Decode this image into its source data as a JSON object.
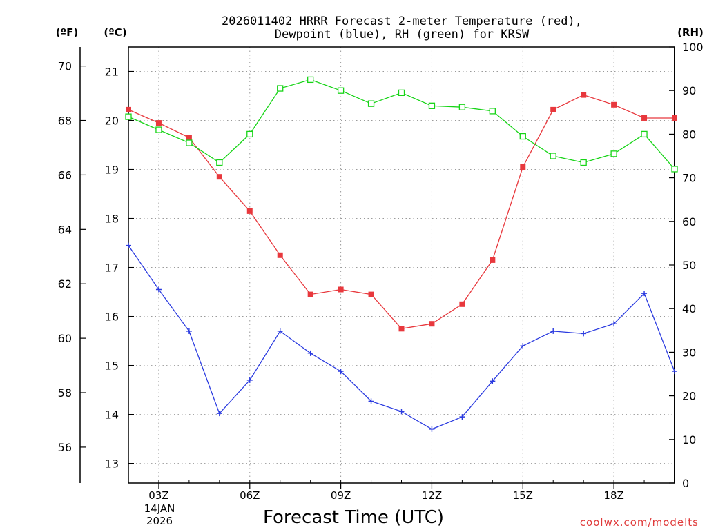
{
  "chart_data": {
    "type": "line",
    "title_line1": "2026011402 HRRR Forecast 2-meter Temperature (red),",
    "title_line2": "Dewpoint (blue), RH (green) for KRSW",
    "xlabel": "Forecast Time (UTC)",
    "watermark": "coolwx.com/modelts",
    "axis_unit_f": "(ºF)",
    "axis_unit_c": "(ºC)",
    "axis_unit_rh": "(RH)",
    "date_label_line1": "14JAN",
    "date_label_line2": "2026",
    "x_hours": [
      2,
      3,
      4,
      5,
      6,
      7,
      8,
      9,
      10,
      11,
      12,
      13,
      14,
      15,
      16,
      17,
      18,
      19,
      20
    ],
    "xlim": [
      2,
      20
    ],
    "x_ticks": [
      {
        "hour": 3,
        "label": "03Z"
      },
      {
        "hour": 6,
        "label": "06Z"
      },
      {
        "hour": 9,
        "label": "09Z"
      },
      {
        "hour": 12,
        "label": "12Z"
      },
      {
        "hour": 15,
        "label": "15Z"
      },
      {
        "hour": 18,
        "label": "18Z"
      }
    ],
    "c_ticks": [
      13,
      14,
      15,
      16,
      17,
      18,
      19,
      20,
      21
    ],
    "f_ticks": [
      56,
      58,
      60,
      62,
      64,
      66,
      68,
      70
    ],
    "rh_ticks": [
      0,
      10,
      20,
      30,
      40,
      50,
      60,
      70,
      80,
      90,
      100
    ],
    "ylim_c": [
      12.6,
      21.5
    ],
    "ylim_rh": [
      0,
      100
    ],
    "series": [
      {
        "name": "Temperature",
        "units": "C",
        "color": "#e8383d",
        "marker": "filled-square",
        "values": [
          20.22,
          19.95,
          19.65,
          18.85,
          18.15,
          17.25,
          16.45,
          16.55,
          16.45,
          15.75,
          15.85,
          16.25,
          17.15,
          19.05,
          20.22,
          20.52,
          20.32,
          20.05,
          20.05
        ]
      },
      {
        "name": "Dewpoint",
        "units": "C",
        "color": "#2b3be0",
        "marker": "plus",
        "values": [
          17.45,
          16.55,
          15.7,
          14.02,
          14.7,
          15.7,
          15.25,
          14.88,
          14.27,
          14.06,
          13.7,
          13.95,
          14.68,
          15.4,
          15.7,
          15.65,
          15.85,
          16.47,
          14.88
        ]
      },
      {
        "name": "RH",
        "units": "%",
        "color": "#17d417",
        "marker": "open-square",
        "values": [
          84,
          81,
          78,
          73.5,
          80,
          90.5,
          92.5,
          90,
          87,
          89.5,
          86.5,
          86.2,
          85.3,
          79.5,
          75,
          73.5,
          75.5,
          80,
          72
        ]
      }
    ]
  }
}
